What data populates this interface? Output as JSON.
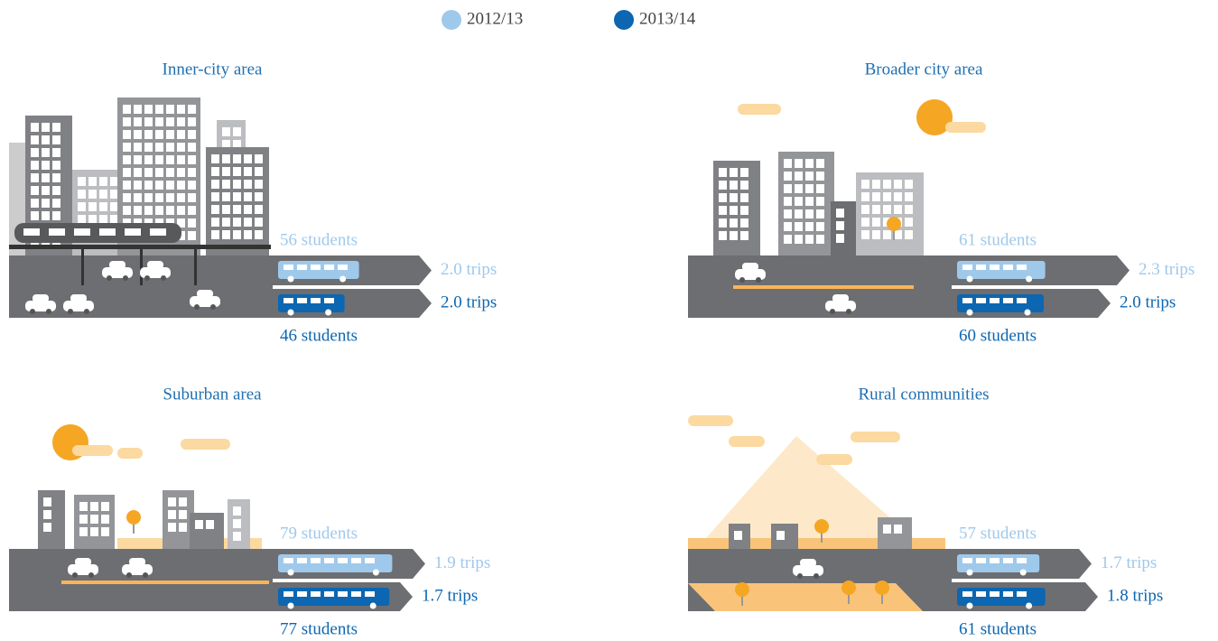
{
  "legend": {
    "series": [
      {
        "name": "2012/13",
        "color": "#9fc9eb"
      },
      {
        "name": "2013/14",
        "color": "#0c66b1"
      }
    ]
  },
  "chart_data": [
    {
      "type": "bus",
      "title": "Inner-city area",
      "students": [
        56,
        46
      ],
      "students_labels": [
        "56 students",
        "46 students"
      ],
      "trips": [
        2.0,
        2.0
      ],
      "trips_labels": [
        "2.0 trips",
        "2.0 trips"
      ]
    },
    {
      "type": "bus",
      "title": "Broader city area",
      "students": [
        61,
        60
      ],
      "students_labels": [
        "61 students",
        "60 students"
      ],
      "trips": [
        2.3,
        2.0
      ],
      "trips_labels": [
        "2.3 trips",
        "2.0 trips"
      ]
    },
    {
      "type": "bus",
      "title": "Suburban area",
      "students": [
        79,
        77
      ],
      "students_labels": [
        "79 students",
        "77 students"
      ],
      "trips": [
        1.9,
        1.7
      ],
      "trips_labels": [
        "1.9 trips",
        "1.7 trips"
      ]
    },
    {
      "type": "bus",
      "title": "Rural communities",
      "students": [
        57,
        61
      ],
      "students_labels": [
        "57 students",
        "61 students"
      ],
      "trips": [
        1.7,
        1.8
      ],
      "trips_labels": [
        "1.7 trips",
        "1.8 trips"
      ]
    }
  ]
}
